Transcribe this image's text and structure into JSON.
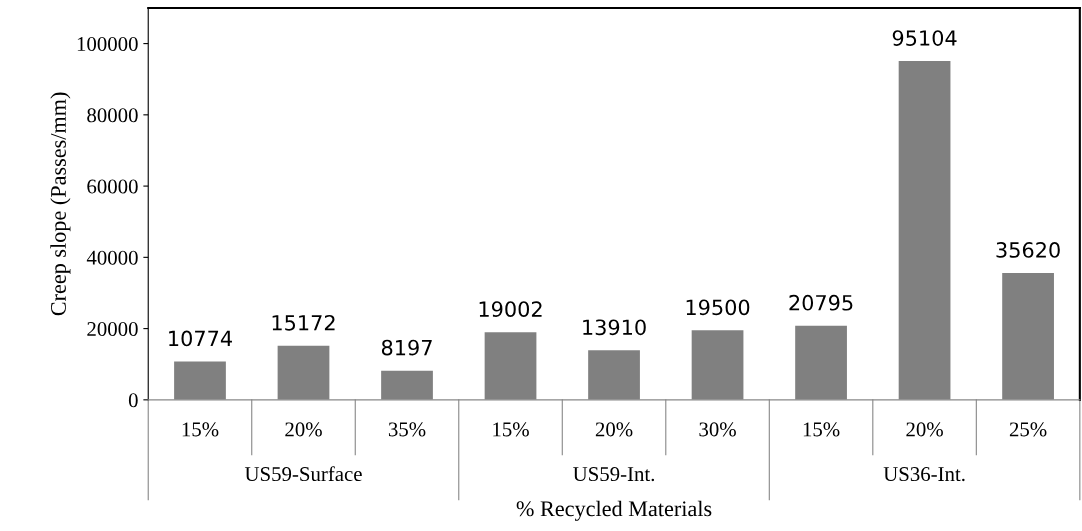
{
  "chart_data": {
    "type": "bar",
    "xlabel": "% Recycled Materials",
    "ylabel": "Creep slope (Passes/mm)",
    "categories": [
      "15%",
      "20%",
      "35%",
      "15%",
      "20%",
      "30%",
      "15%",
      "20%",
      "25%"
    ],
    "values": [
      10774,
      15172,
      8197,
      19002,
      13910,
      19500,
      20795,
      95104,
      35620
    ],
    "color": "#808080",
    "data_labels": true,
    "ylim": [
      0,
      110000
    ],
    "yticks": [
      0,
      20000,
      40000,
      60000,
      80000,
      100000
    ],
    "grid": false,
    "annotations": [
      "US59-Surface",
      "US59-Int.",
      "US36-Int."
    ]
  }
}
